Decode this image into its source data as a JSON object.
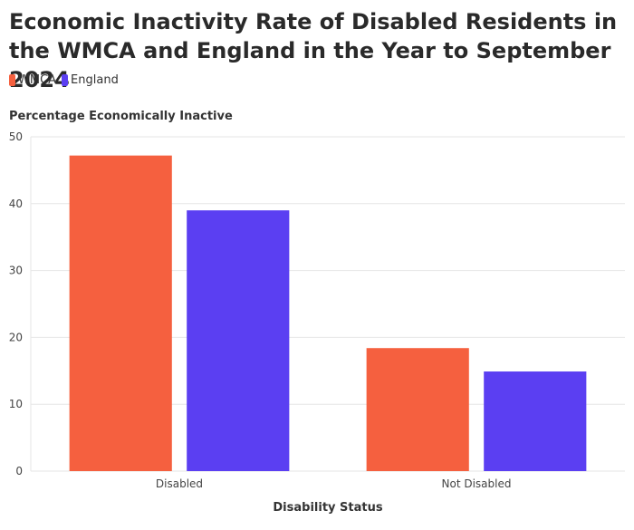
{
  "title": "Economic Inactivity Rate of Disabled Residents in the WMCA and England in the Year to September 2024",
  "legend": [
    {
      "label": "WMCA",
      "color": "#f5603f"
    },
    {
      "label": "England",
      "color": "#5b3ff2"
    }
  ],
  "chart_data": {
    "type": "bar",
    "title": "Economic Inactivity Rate of Disabled Residents in the WMCA and England in the Year to September 2024",
    "xlabel": "Disability Status",
    "ylabel": "Percentage Economically Inactive",
    "categories": [
      "Disabled",
      "Not Disabled"
    ],
    "series": [
      {
        "name": "WMCA",
        "color": "#f5603f",
        "values": [
          47.2,
          18.4
        ]
      },
      {
        "name": "England",
        "color": "#5b3ff2",
        "values": [
          39.0,
          14.9
        ]
      }
    ],
    "ylim": [
      0,
      50
    ],
    "yticks": [
      0,
      10,
      20,
      30,
      40,
      50
    ],
    "grid": true,
    "legend_position": "top-left"
  }
}
